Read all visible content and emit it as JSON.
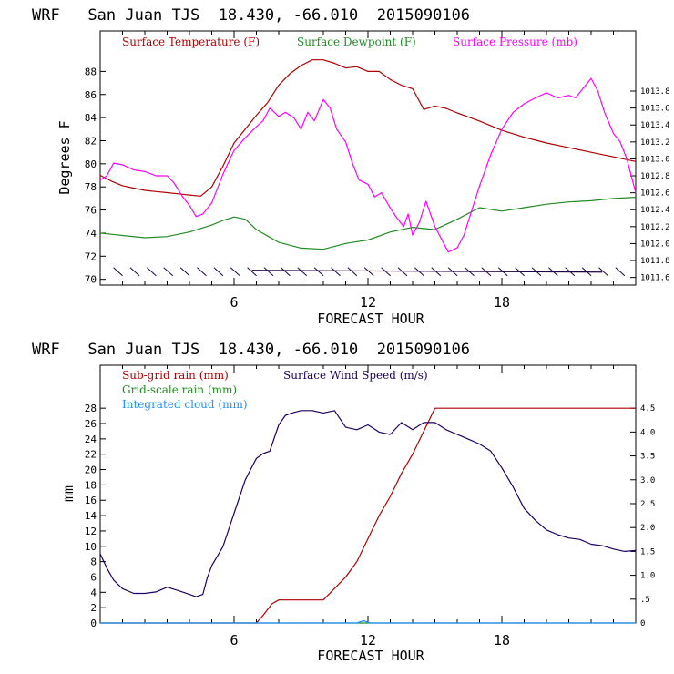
{
  "chart_data": [
    {
      "type": "line",
      "title": "WRF   San Juan TJS  18.430, -66.010  2015090106",
      "xlabel": "FORECAST HOUR",
      "ylabel": "Degrees F",
      "xlim": [
        0,
        24
      ],
      "ylim": [
        69.5,
        91.5
      ],
      "y2lim": [
        1011.51,
        1014.51
      ],
      "xticks": [
        6,
        12,
        18
      ],
      "yticks": [
        70,
        72,
        74,
        76,
        78,
        80,
        82,
        84,
        86,
        88
      ],
      "y2ticks": [
        "1011.6",
        "1011.8",
        "1012.0",
        "1012.2",
        "1012.4",
        "1012.6",
        "1012.8",
        "1013.0",
        "1013.2",
        "1013.4",
        "1013.6",
        "1013.8"
      ],
      "y2tick_values": [
        1011.6,
        1011.8,
        1012.0,
        1012.2,
        1012.4,
        1012.6,
        1012.8,
        1013.0,
        1013.2,
        1013.4,
        1013.6,
        1013.8
      ],
      "legend_placement": "top",
      "series": [
        {
          "name": "Surface Temperature (F)",
          "color": "#b00000",
          "axis": "left",
          "x": [
            0,
            0.5,
            1,
            1.5,
            2,
            2.5,
            3,
            3.5,
            4,
            4.5,
            5,
            5.5,
            6,
            6.5,
            7,
            7.5,
            8,
            8.5,
            9,
            9.5,
            10,
            10.5,
            11,
            11.5,
            12,
            12.5,
            13,
            13.5,
            14,
            14.5,
            15,
            15.5,
            16,
            17,
            18,
            19,
            20,
            21,
            22,
            23,
            24
          ],
          "y": [
            79.0,
            78.5,
            78.1,
            77.9,
            77.7,
            77.6,
            77.5,
            77.4,
            77.3,
            77.2,
            78.0,
            79.8,
            81.8,
            83.0,
            84.2,
            85.3,
            86.8,
            87.8,
            88.5,
            89.0,
            89.0,
            88.7,
            88.3,
            88.4,
            88.0,
            88.0,
            87.3,
            86.8,
            86.5,
            84.7,
            85.0,
            84.8,
            84.4,
            83.7,
            82.9,
            82.3,
            81.8,
            81.4,
            81.0,
            80.6,
            80.2
          ]
        },
        {
          "name": "Surface Dewpoint (F)",
          "color": "#228b22",
          "axis": "left",
          "x": [
            0,
            1,
            2,
            3,
            4,
            5,
            5.5,
            6,
            6.5,
            7,
            8,
            9,
            10,
            11,
            12,
            13,
            14,
            15,
            16,
            17,
            18,
            19,
            20,
            21,
            22,
            23,
            24
          ],
          "y": [
            74.0,
            73.8,
            73.6,
            73.7,
            74.1,
            74.7,
            75.1,
            75.4,
            75.2,
            74.3,
            73.2,
            72.7,
            72.6,
            73.1,
            73.4,
            74.1,
            74.5,
            74.3,
            75.2,
            76.2,
            75.9,
            76.2,
            76.5,
            76.7,
            76.8,
            77.0,
            77.1
          ],
          "wind_barbs_y": 70.7,
          "wind_barb_color": "#200040"
        },
        {
          "name": "Surface Pressure (mb)",
          "color": "#ff00ff",
          "axis": "right",
          "x": [
            0,
            0.3,
            0.6,
            1,
            1.5,
            2,
            2.5,
            3,
            3.3,
            3.7,
            4,
            4.3,
            4.6,
            5,
            5.5,
            6,
            6.5,
            7,
            7.3,
            7.6,
            8,
            8.3,
            8.7,
            9,
            9.3,
            9.6,
            10,
            10.3,
            10.6,
            11,
            11.3,
            11.6,
            12,
            12.3,
            12.6,
            13,
            13.3,
            13.6,
            13.8,
            14,
            14.3,
            14.6,
            15,
            15.3,
            15.6,
            16,
            16.3,
            16.6,
            17,
            17.5,
            18,
            18.5,
            19,
            19.5,
            20,
            20.5,
            21,
            21.3,
            21.6,
            22,
            22.3,
            22.6,
            23,
            23.3,
            23.6,
            24
          ],
          "y": [
            1012.75,
            1012.8,
            1012.95,
            1012.93,
            1012.87,
            1012.85,
            1012.8,
            1012.8,
            1012.72,
            1012.55,
            1012.45,
            1012.32,
            1012.35,
            1012.48,
            1012.82,
            1013.1,
            1013.25,
            1013.38,
            1013.45,
            1013.6,
            1013.5,
            1013.55,
            1013.48,
            1013.35,
            1013.55,
            1013.45,
            1013.7,
            1013.6,
            1013.35,
            1013.2,
            1012.95,
            1012.75,
            1012.7,
            1012.55,
            1012.6,
            1012.42,
            1012.3,
            1012.2,
            1012.35,
            1012.1,
            1012.25,
            1012.5,
            1012.2,
            1012.05,
            1011.9,
            1011.95,
            1012.1,
            1012.35,
            1012.68,
            1013.05,
            1013.35,
            1013.55,
            1013.65,
            1013.72,
            1013.78,
            1013.72,
            1013.75,
            1013.72,
            1013.82,
            1013.95,
            1013.8,
            1013.55,
            1013.3,
            1013.2,
            1013.0,
            1012.6
          ]
        }
      ]
    },
    {
      "type": "line",
      "title": "WRF   San Juan TJS  18.430, -66.010  2015090106",
      "xlabel": "FORECAST HOUR",
      "ylabel": "mm",
      "xlim": [
        0,
        24
      ],
      "ylim": [
        0,
        33.6
      ],
      "y2lim": [
        0,
        5.4
      ],
      "xticks": [
        6,
        12,
        18
      ],
      "yticks": [
        0,
        2,
        4,
        6,
        8,
        10,
        12,
        14,
        16,
        18,
        20,
        22,
        24,
        26,
        28
      ],
      "y2ticks": [
        "0",
        ".5",
        "1.0",
        "1.5",
        "2.0",
        "2.5",
        "3.0",
        "3.5",
        "4.0",
        "4.5"
      ],
      "y2tick_values": [
        0,
        0.5,
        1.0,
        1.5,
        2.0,
        2.5,
        3.0,
        3.5,
        4.0,
        4.5
      ],
      "legend_placement": "top-left",
      "series": [
        {
          "name": "Sub-grid rain (mm)",
          "color": "#b00000",
          "axis": "left",
          "x": [
            0,
            7,
            7.3,
            7.7,
            8,
            8.5,
            9,
            9.5,
            10,
            10.5,
            11,
            11.5,
            12,
            12.5,
            13,
            13.5,
            14,
            14.5,
            15,
            24
          ],
          "y": [
            0,
            0,
            1.0,
            2.5,
            3.0,
            3.0,
            3.0,
            3.0,
            3.0,
            4.5,
            6.0,
            8.0,
            11.0,
            14.0,
            16.5,
            19.5,
            22.0,
            25.0,
            28.0,
            28.0
          ]
        },
        {
          "name": "Grid-scale rain (mm)",
          "color": "#228b22",
          "axis": "left",
          "x": [
            0,
            24
          ],
          "y": [
            0,
            0
          ]
        },
        {
          "name": "Integrated cloud (mm)",
          "color": "#1e90ff",
          "axis": "left",
          "x": [
            0,
            11.5,
            11.8,
            12.1,
            24
          ],
          "y": [
            0,
            0,
            0.3,
            0,
            0
          ]
        },
        {
          "name": "Surface Wind Speed (m/s)",
          "color": "#200060",
          "axis": "right",
          "x": [
            0,
            0.3,
            0.6,
            1,
            1.5,
            2,
            2.5,
            3,
            3.5,
            4,
            4.3,
            4.6,
            4.8,
            5,
            5.5,
            6,
            6.5,
            7,
            7.3,
            7.6,
            8,
            8.3,
            8.6,
            9,
            9.5,
            10,
            10.5,
            11,
            11.5,
            12,
            12.5,
            13,
            13.5,
            14,
            14.5,
            15,
            15.5,
            16,
            16.5,
            17,
            17.5,
            18,
            18.5,
            19,
            19.5,
            20,
            20.5,
            21,
            21.5,
            22,
            22.5,
            23,
            23.5,
            24
          ],
          "y": [
            1.45,
            1.15,
            0.9,
            0.72,
            0.62,
            0.62,
            0.65,
            0.75,
            0.68,
            0.6,
            0.55,
            0.6,
            0.95,
            1.2,
            1.6,
            2.3,
            3.0,
            3.45,
            3.55,
            3.6,
            4.15,
            4.35,
            4.4,
            4.45,
            4.45,
            4.4,
            4.45,
            4.1,
            4.05,
            4.15,
            4.0,
            3.95,
            4.2,
            4.05,
            4.2,
            4.2,
            4.05,
            3.95,
            3.85,
            3.75,
            3.6,
            3.25,
            2.85,
            2.4,
            2.15,
            1.95,
            1.85,
            1.78,
            1.75,
            1.65,
            1.62,
            1.55,
            1.5,
            1.52
          ]
        }
      ]
    }
  ]
}
